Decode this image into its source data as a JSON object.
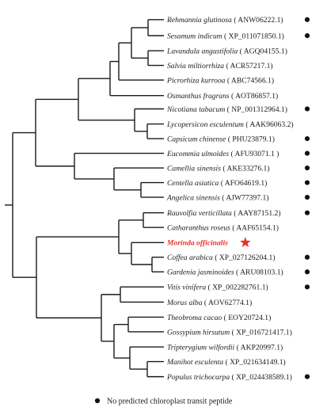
{
  "colors": {
    "branch": "#1a1a1a",
    "highlight": "#e8322a",
    "marker": "#111111"
  },
  "taxa": [
    {
      "species": "Rehmannia glutinosa",
      "accession": " ( ANW06222.1)",
      "no_ctp": true,
      "highlight": false
    },
    {
      "species": "Sesamum indicum",
      "accession": " ( XP_011071850.1)",
      "no_ctp": true,
      "highlight": false
    },
    {
      "species": "Lavandula angustifolia",
      "accession": " ( AGQ04155.1)",
      "no_ctp": false,
      "highlight": false
    },
    {
      "species": "Salvia miltiorrhiza",
      "accession": " ( ACR57217.1)",
      "no_ctp": false,
      "highlight": false
    },
    {
      "species": "Picrorhiza kurrooa",
      "accession": " ( ABC74566.1)",
      "no_ctp": false,
      "highlight": false
    },
    {
      "species": "Osmanthus fragrans",
      "accession": " ( AOT86857.1)",
      "no_ctp": false,
      "highlight": false
    },
    {
      "species": "Nicotiana tabacum",
      "accession": " ( NP_001312964.1)",
      "no_ctp": true,
      "highlight": false
    },
    {
      "species": "Lycopersicon esculentum",
      "accession": " ( AAK96063.2)",
      "no_ctp": false,
      "highlight": false
    },
    {
      "species": "Capsicum chinense",
      "accession": " ( PHU23879.1)",
      "no_ctp": true,
      "highlight": false
    },
    {
      "species": "Eucommia ulmoides",
      "accession": " ( AFU93071.1 )",
      "no_ctp": true,
      "highlight": false
    },
    {
      "species": "Camellia sinensis",
      "accession": " ( AKE33276.1)",
      "no_ctp": true,
      "highlight": false
    },
    {
      "species": "Centella asiatica",
      "accession": " ( AFO64619.1)",
      "no_ctp": true,
      "highlight": false
    },
    {
      "species": "Angelica sinensis",
      "accession": " ( AJW77397.1)",
      "no_ctp": true,
      "highlight": false
    },
    {
      "species": "Rauvolfia verticillata",
      "accession": " ( AAY87151.2)",
      "no_ctp": true,
      "highlight": false
    },
    {
      "species": "Catharanthus roseus",
      "accession": " ( AAF65154.1)",
      "no_ctp": false,
      "highlight": false
    },
    {
      "species": "Morinda officinalis",
      "accession": "",
      "no_ctp": false,
      "highlight": true
    },
    {
      "species": "Coffea arabica",
      "accession": " ( XP_027126204.1)",
      "no_ctp": true,
      "highlight": false
    },
    {
      "species": "Gardenia jasminoides",
      "accession": " ( ARU08103.1)",
      "no_ctp": true,
      "highlight": false
    },
    {
      "species": "Vitis vinifera",
      "accession": " ( XP_002282761.1)",
      "no_ctp": true,
      "highlight": false
    },
    {
      "species": "Morus alba",
      "accession": " ( AOV62774.1)",
      "no_ctp": false,
      "highlight": false
    },
    {
      "species": "Theobroma cacao",
      "accession": " ( EOY20724.1)",
      "no_ctp": false,
      "highlight": false
    },
    {
      "species": "Gossypium hirsutum",
      "accession": " ( XP_016721417.1)",
      "no_ctp": false,
      "highlight": false
    },
    {
      "species": "Tripterygium wilfordii",
      "accession": " ( AKP20997.1)",
      "no_ctp": false,
      "highlight": false
    },
    {
      "species": "Manihot esculenta",
      "accession": " ( XP_021634149.1)",
      "no_ctp": false,
      "highlight": false
    },
    {
      "species": "Populus trichocarpa",
      "accession": " ( XP_024438589.1)",
      "no_ctp": true,
      "highlight": false
    }
  ],
  "legend": {
    "text": "No predicted chloroplast transit peptide",
    "marker": "filled-circle"
  },
  "highlight_marker": "red-star"
}
